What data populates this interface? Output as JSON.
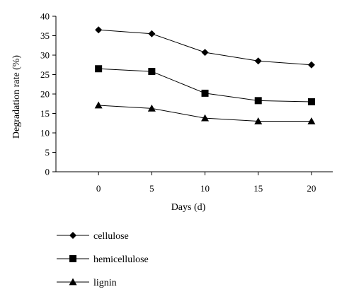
{
  "chart_data": {
    "type": "line",
    "x": [
      0,
      5,
      10,
      15,
      20
    ],
    "xlabel": "Days (d)",
    "ylabel": "Degradation rate (%)",
    "xlim": [
      -4,
      22
    ],
    "ylim": [
      0,
      40
    ],
    "xticks": [
      "0",
      "5",
      "10",
      "15",
      "20"
    ],
    "yticks": [
      "0",
      "5",
      "10",
      "15",
      "20",
      "25",
      "30",
      "35",
      "40"
    ],
    "grid": false,
    "legend_position": "bottom-left",
    "series": [
      {
        "name": "cellulose",
        "marker": "diamond",
        "values": [
          36.5,
          35.5,
          30.7,
          28.5,
          27.5
        ]
      },
      {
        "name": "hemicellulose",
        "marker": "square",
        "values": [
          26.5,
          25.8,
          20.2,
          18.3,
          18.0
        ]
      },
      {
        "name": "lignin",
        "marker": "triangle",
        "values": [
          17.1,
          16.3,
          13.8,
          13.0,
          13.0
        ]
      }
    ],
    "line_color": "#000000"
  }
}
